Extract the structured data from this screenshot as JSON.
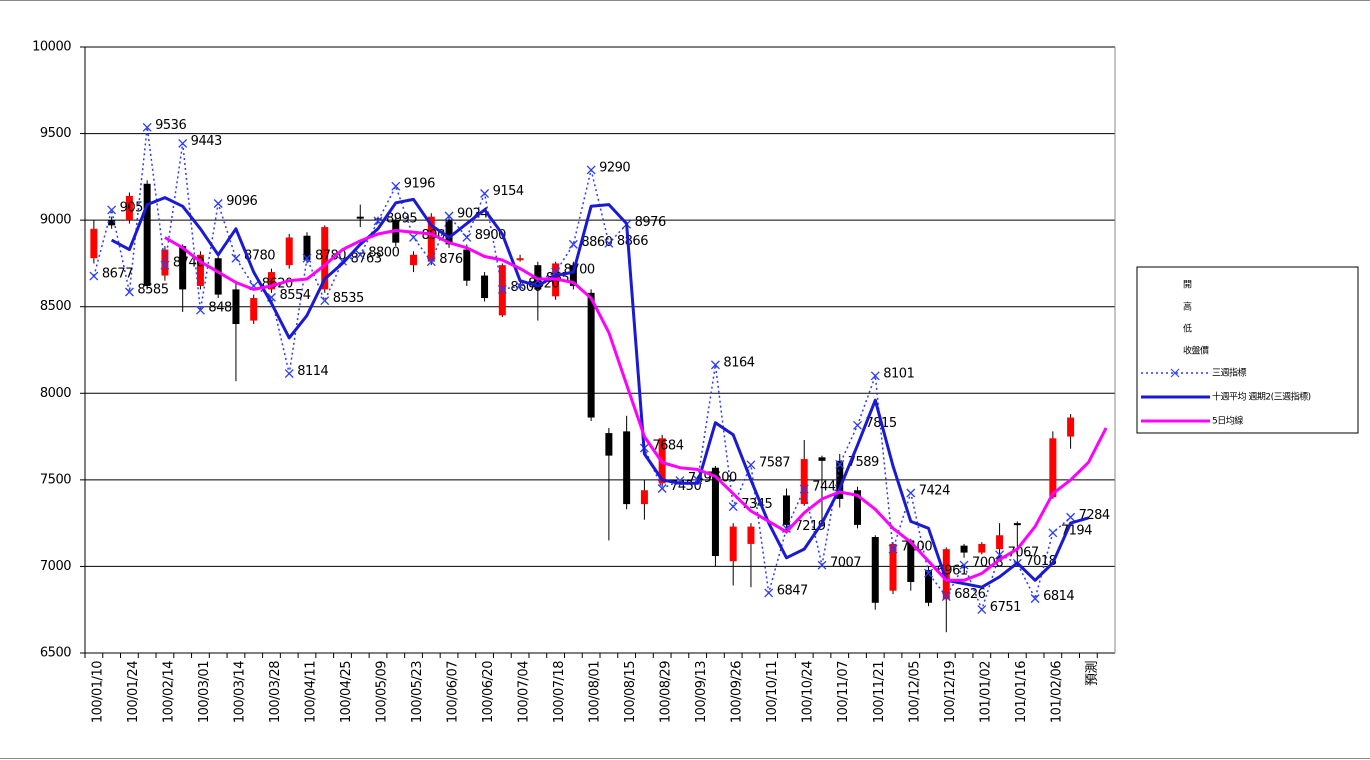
{
  "chart_data": {
    "type": "candlestick",
    "categories": [
      "100/01/10",
      null,
      "100/01/24",
      null,
      "100/02/14",
      null,
      "100/03/01",
      null,
      "100/03/14",
      null,
      "100/03/28",
      null,
      "100/04/11",
      null,
      "100/04/25",
      null,
      "100/05/09",
      null,
      "100/05/23",
      null,
      "100/06/07",
      null,
      "100/06/20",
      null,
      "100/07/04",
      null,
      "100/07/18",
      null,
      "100/08/01",
      null,
      "100/08/15",
      null,
      "100/08/29",
      null,
      "100/09/13",
      null,
      "100/09/26",
      null,
      "100/10/11",
      null,
      "100/10/24",
      null,
      "100/11/07",
      null,
      "100/11/21",
      null,
      "100/12/05",
      null,
      "100/12/19",
      null,
      "101/01/02",
      null,
      "101/01/16",
      null,
      "101/02/06",
      null,
      "預測",
      null
    ],
    "ylim": [
      6500,
      10000
    ],
    "yticks": [
      6500,
      7000,
      7500,
      8000,
      8500,
      9000,
      9500,
      10000
    ],
    "grid": true,
    "candles": {
      "names": [
        "開",
        "高",
        "低",
        "收盤價"
      ],
      "up_color": "#ff0000",
      "down_color": "#000000",
      "open": [
        8780,
        9000,
        9000,
        9210,
        8680,
        8850,
        8620,
        8780,
        8600,
        8420,
        8600,
        8740,
        8910,
        8600,
        null,
        9020,
        9010,
        9000,
        8740,
        8760,
        9000,
        8830,
        8680,
        8450,
        8770,
        8740,
        8560,
        8740,
        8580,
        7770,
        7780,
        7360,
        7480,
        null,
        null,
        7570,
        7030,
        7130,
        null,
        7410,
        7360,
        7630,
        7610,
        7440,
        7170,
        6860,
        7150,
        6980,
        6810,
        7120,
        7080,
        7100,
        7250,
        null,
        7400,
        7750,
        null,
        null
      ],
      "high": [
        9000,
        9020,
        9160,
        9230,
        8850,
        8860,
        8820,
        8800,
        8650,
        8570,
        8720,
        8920,
        8930,
        8970,
        null,
        9090,
        9020,
        9020,
        8820,
        9040,
        9020,
        8860,
        8700,
        8750,
        8800,
        8760,
        8760,
        8760,
        8600,
        7800,
        7870,
        7500,
        7760,
        null,
        null,
        7580,
        7250,
        7250,
        null,
        7450,
        7730,
        7640,
        7650,
        7460,
        7180,
        7140,
        7160,
        7000,
        7110,
        7130,
        7140,
        7250,
        7260,
        null,
        7780,
        7880,
        null,
        null
      ],
      "low": [
        8750,
        8950,
        8980,
        8600,
        8650,
        8470,
        8600,
        8550,
        8070,
        8400,
        8580,
        8720,
        8750,
        8580,
        null,
        8960,
        8980,
        8850,
        8700,
        8740,
        8840,
        8620,
        8530,
        8440,
        8760,
        8420,
        8540,
        8600,
        7840,
        7150,
        7330,
        7270,
        7460,
        null,
        null,
        7000,
        6890,
        6880,
        null,
        7190,
        7350,
        7260,
        7340,
        7220,
        6750,
        6840,
        6860,
        6770,
        6620,
        7050,
        7070,
        7050,
        7000,
        null,
        7390,
        7680,
        null,
        null
      ],
      "close": [
        8950,
        8970,
        9140,
        8620,
        8830,
        8600,
        8800,
        8570,
        8400,
        8550,
        8700,
        8900,
        8770,
        8960,
        null,
        9010,
        9000,
        8870,
        8800,
        9020,
        8860,
        8650,
        8550,
        8740,
        8780,
        8600,
        8750,
        8620,
        7860,
        7640,
        7360,
        7440,
        7740,
        null,
        null,
        7060,
        7230,
        7230,
        null,
        7240,
        7620,
        7610,
        7390,
        7240,
        6790,
        7130,
        6910,
        6790,
        7100,
        7080,
        7130,
        7180,
        7240,
        null,
        7740,
        7860,
        null,
        null
      ]
    },
    "series": [
      {
        "name": "三週指標",
        "color": "#2b3bff",
        "style": "dotted",
        "marker": "x",
        "labels": true,
        "values": [
          8677,
          9059,
          8585,
          9536,
          8740,
          9443,
          8480,
          9096,
          8780,
          8620,
          8554,
          8114,
          8780,
          8535,
          8763,
          8800,
          8995,
          9196,
          8900,
          8760,
          9024,
          8900,
          9154,
          8600,
          8620,
          8650,
          8700,
          8860,
          9290,
          8866,
          8976,
          7684,
          7450,
          7496,
          7500,
          8164,
          7345,
          7587,
          6847,
          7219,
          7447,
          7007,
          7589,
          7815,
          8101,
          7100,
          7424,
          6961,
          6826,
          7008,
          6751,
          7067,
          7018,
          6814,
          7194,
          7284,
          null,
          null
        ]
      },
      {
        "name": "十週平均 週期2(三週指標)",
        "color": "#1a1ad4",
        "style": "thick",
        "values": [
          null,
          8885,
          8830,
          9090,
          9130,
          9080,
          8950,
          8800,
          8950,
          8700,
          8520,
          8320,
          8450,
          8660,
          8750,
          8860,
          8950,
          9100,
          9120,
          8970,
          8900,
          8980,
          9060,
          8920,
          8650,
          8620,
          8680,
          8700,
          9080,
          9090,
          8980,
          7650,
          7500,
          7480,
          7480,
          7830,
          7760,
          7500,
          7250,
          7050,
          7100,
          7250,
          7450,
          7700,
          7960,
          7580,
          7260,
          7220,
          6920,
          6900,
          6880,
          6940,
          7020,
          6920,
          7020,
          7250,
          7280,
          null
        ]
      },
      {
        "name": "5日均線",
        "color": "#ff00ff",
        "style": "solid",
        "values": [
          null,
          null,
          null,
          null,
          8900,
          8840,
          8760,
          8700,
          8640,
          8600,
          8620,
          8650,
          8660,
          8740,
          8830,
          8880,
          8920,
          8940,
          8930,
          8920,
          8870,
          8840,
          8790,
          8770,
          8720,
          8660,
          8660,
          8640,
          8550,
          8350,
          8050,
          7750,
          7600,
          7570,
          7560,
          7520,
          7420,
          7320,
          7260,
          7200,
          7310,
          7390,
          7430,
          7410,
          7330,
          7220,
          7140,
          7030,
          6920,
          6920,
          6960,
          7040,
          7100,
          7230,
          7420,
          7500,
          7600,
          7800
        ]
      }
    ]
  }
}
